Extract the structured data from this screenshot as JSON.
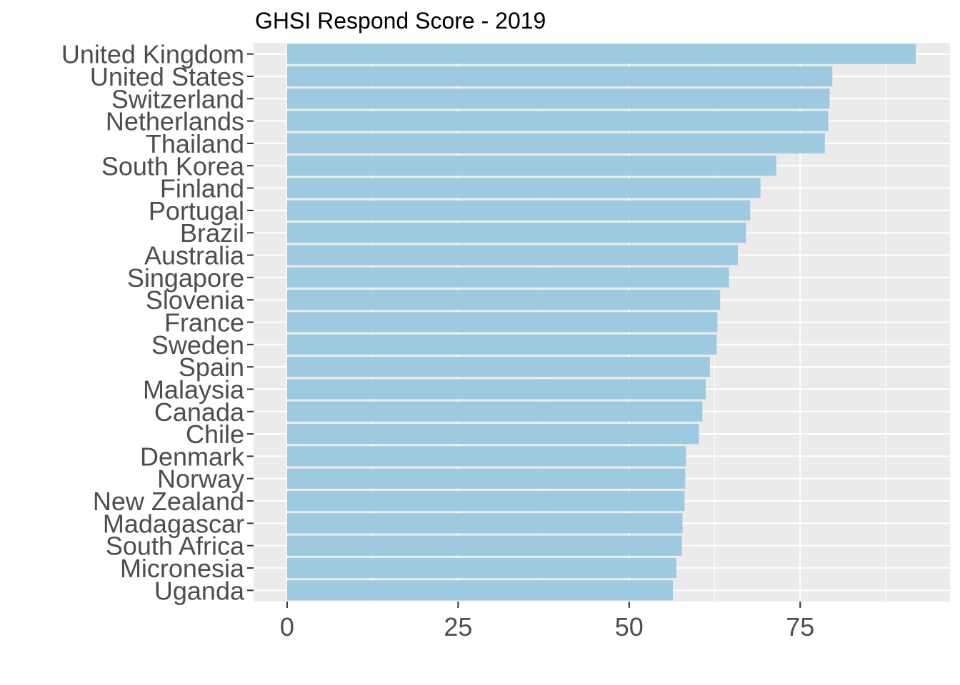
{
  "chart_data": {
    "type": "bar",
    "orientation": "horizontal",
    "title": "GHSI Respond Score - 2019",
    "xlabel": "",
    "ylabel": "",
    "categories": [
      "United Kingdom",
      "United States",
      "Switzerland",
      "Netherlands",
      "Thailand",
      "South Korea",
      "Finland",
      "Portugal",
      "Brazil",
      "Australia",
      "Singapore",
      "Slovenia",
      "France",
      "Sweden",
      "Spain",
      "Malaysia",
      "Canada",
      "Chile",
      "Denmark",
      "Norway",
      "New Zealand",
      "Madagascar",
      "South Africa",
      "Micronesia",
      "Uganda"
    ],
    "values": [
      91.9,
      79.7,
      79.3,
      79.1,
      78.6,
      71.5,
      69.2,
      67.7,
      67.1,
      65.9,
      64.6,
      63.3,
      62.9,
      62.8,
      61.8,
      61.2,
      60.7,
      60.2,
      58.3,
      58.2,
      58.1,
      57.8,
      57.7,
      56.9,
      56.4
    ],
    "xlim": [
      -4.9,
      96.9
    ],
    "xticks": [
      0,
      25,
      50,
      75
    ],
    "grid": true,
    "bar_color": "#9ecae1",
    "panel_color": "#ebebeb"
  }
}
